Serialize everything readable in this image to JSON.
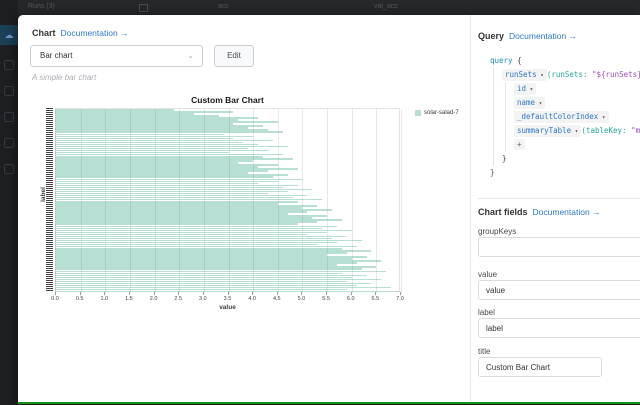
{
  "background": {
    "top_bar": {
      "runs_label": "Runs (3)",
      "panel_title_1": "acc",
      "panel_title_2": "val_acc"
    }
  },
  "icons": {
    "chevron_down": "⌄",
    "cloud": "☁"
  },
  "colors": {
    "link_blue": "#2e78c7",
    "bar_teal": "#b7dfd3",
    "bottom_green": "#119418"
  },
  "modal": {
    "chart_section": {
      "title": "Chart",
      "doc_link": "Documentation →",
      "chart_type": "Bar chart",
      "edit_button": "Edit",
      "description": "A simple bar chart"
    },
    "query_section": {
      "title": "Query",
      "doc_link": "Documentation →",
      "code_lines": [
        {
          "indent": 0,
          "chip": [],
          "rest": [
            {
              "t": "query",
              "c": "kw"
            },
            {
              "t": " {",
              "c": "pln"
            }
          ]
        },
        {
          "indent": 1,
          "chip": [
            {
              "t": "runSets",
              "c": "fld"
            },
            {
              "t": " ▾",
              "c": "chv"
            }
          ],
          "rest": [
            {
              "t": "(",
              "c": "prm"
            },
            {
              "t": "runSets:",
              "c": "prm"
            },
            {
              "t": " \"${runSets}\"",
              "c": "str"
            },
            {
              "t": " ▾",
              "c": "chv"
            }
          ]
        },
        {
          "indent": 2,
          "chip": [
            {
              "t": "id",
              "c": "fld"
            },
            {
              "t": " ▾",
              "c": "chv"
            }
          ],
          "rest": []
        },
        {
          "indent": 2,
          "chip": [
            {
              "t": "name",
              "c": "fld"
            },
            {
              "t": " ▾",
              "c": "chv"
            }
          ],
          "rest": []
        },
        {
          "indent": 2,
          "chip": [
            {
              "t": "_defaultColorIndex",
              "c": "fld"
            },
            {
              "t": " ▾",
              "c": "chv"
            }
          ],
          "rest": []
        },
        {
          "indent": 2,
          "chip": [
            {
              "t": "summaryTable",
              "c": "fld"
            },
            {
              "t": " ▾",
              "c": "chv"
            }
          ],
          "rest": [
            {
              "t": "(",
              "c": "prm"
            },
            {
              "t": "tableKey:",
              "c": "prm"
            },
            {
              "t": " \"my_ba",
              "c": "str"
            }
          ]
        },
        {
          "indent": 2,
          "chip": [
            {
              "t": "+",
              "c": "pls"
            }
          ],
          "rest": []
        },
        {
          "indent": 1,
          "chip": [],
          "rest": [
            {
              "t": "}",
              "c": "pln"
            }
          ]
        },
        {
          "indent": 0,
          "chip": [],
          "rest": [
            {
              "t": "}",
              "c": "pln"
            }
          ]
        }
      ]
    },
    "fields_section": {
      "title": "Chart fields",
      "doc_link": "Documentation →",
      "fields": [
        {
          "label": "groupKeys",
          "value": ""
        },
        {
          "label": "value",
          "value": "value"
        },
        {
          "label": "label",
          "value": "label"
        },
        {
          "label": "title",
          "value": "Custom Bar Chart"
        }
      ]
    }
  },
  "chart_data": {
    "type": "bar",
    "orientation": "horizontal",
    "title": "Custom Bar Chart",
    "xlabel": "value",
    "ylabel": "label",
    "xlim": [
      0,
      7
    ],
    "xticks": [
      0.0,
      0.5,
      1.0,
      1.5,
      2.0,
      2.5,
      3.0,
      3.5,
      4.0,
      4.5,
      5.0,
      5.5,
      6.0,
      6.5,
      7.0
    ],
    "grid": true,
    "legend_position": "right",
    "legend": [
      {
        "name": "solar-salad-7",
        "color": "#b7dfd3"
      }
    ],
    "values": [
      2.4,
      3.6,
      2.8,
      3.3,
      4.1,
      3.7,
      4.5,
      3.6,
      4.2,
      3.9,
      4.3,
      4.6,
      3.4,
      4.0,
      3.6,
      4.4,
      3.8,
      4.1,
      4.7,
      3.9,
      4.3,
      3.5,
      4.6,
      4.2,
      4.8,
      4.0,
      3.7,
      4.5,
      4.1,
      4.9,
      4.3,
      3.9,
      4.7,
      4.4,
      5.0,
      4.5,
      4.1,
      4.9,
      4.6,
      5.2,
      4.7,
      4.3,
      5.1,
      4.8,
      5.4,
      4.9,
      4.5,
      5.3,
      5.0,
      5.6,
      5.1,
      4.7,
      5.5,
      5.2,
      5.8,
      5.3,
      4.9,
      5.7,
      5.4,
      6.0,
      5.5,
      5.1,
      5.9,
      5.6,
      6.2,
      5.7,
      5.3,
      6.1,
      5.8,
      6.4,
      5.9,
      5.5,
      6.3,
      6.0,
      6.6,
      6.1,
      5.7,
      6.5,
      6.2,
      6.7,
      5.8,
      6.3,
      6.0,
      6.6,
      5.9,
      6.4,
      6.1,
      6.8,
      5.9,
      6.9
    ]
  }
}
